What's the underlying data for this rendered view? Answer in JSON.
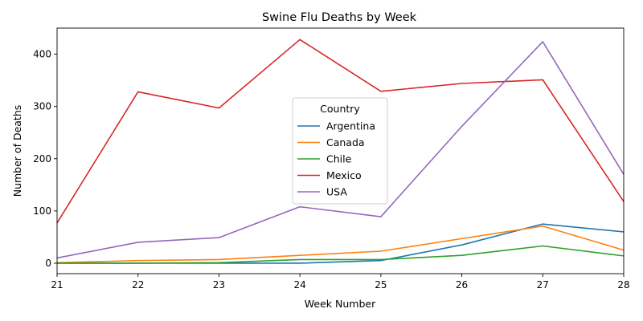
{
  "chart_data": {
    "type": "line",
    "title": "Swine Flu Deaths by Week",
    "xlabel": "Week Number",
    "ylabel": "Number of Deaths",
    "x": [
      21,
      22,
      23,
      24,
      25,
      26,
      27,
      28
    ],
    "xlim": [
      21,
      28
    ],
    "ylim": [
      -20,
      450
    ],
    "xticks": [
      "21",
      "22",
      "23",
      "24",
      "25",
      "26",
      "27",
      "28"
    ],
    "yticks": [
      0,
      100,
      200,
      300,
      400
    ],
    "grid": false,
    "legend": {
      "title": "Country",
      "placement": "center"
    },
    "series": [
      {
        "name": "Argentina",
        "color": "#1f77b4",
        "values": [
          0,
          0,
          0,
          0,
          5,
          35,
          75,
          60
        ]
      },
      {
        "name": "Canada",
        "color": "#ff7f0e",
        "values": [
          1,
          5,
          7,
          15,
          23,
          47,
          71,
          25
        ]
      },
      {
        "name": "Chile",
        "color": "#2ca02c",
        "values": [
          0,
          0,
          1,
          7,
          7,
          15,
          33,
          14
        ]
      },
      {
        "name": "Mexico",
        "color": "#d62728",
        "values": [
          77,
          328,
          297,
          428,
          329,
          344,
          351,
          118
        ]
      },
      {
        "name": "USA",
        "color": "#9467bd",
        "values": [
          10,
          40,
          49,
          108,
          89,
          262,
          424,
          170
        ]
      }
    ]
  }
}
